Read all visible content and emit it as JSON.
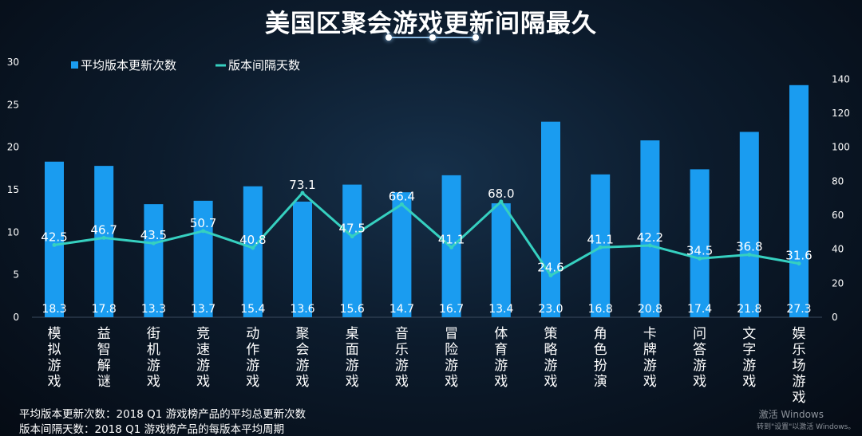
{
  "title": "美国区聚会游戏更新间隔最久",
  "chart_data": {
    "type": "bar+line",
    "categories": [
      "模拟游戏",
      "益智解谜",
      "街机游戏",
      "竞速游戏",
      "动作游戏",
      "聚会游戏",
      "桌面游戏",
      "音乐游戏",
      "冒险游戏",
      "体育游戏",
      "策略游戏",
      "角色扮演",
      "卡牌游戏",
      "问答游戏",
      "文字游戏",
      "娱乐场游戏"
    ],
    "series": [
      {
        "name": "平均版本更新次数",
        "type": "bar",
        "axis": "left",
        "color": "#1a9cf0",
        "values": [
          18.3,
          17.8,
          13.3,
          13.7,
          15.4,
          13.6,
          15.6,
          14.7,
          16.7,
          13.4,
          23.0,
          16.8,
          20.8,
          17.4,
          21.8,
          27.3
        ]
      },
      {
        "name": "版本间隔天数",
        "type": "line",
        "axis": "right",
        "color": "#36d0c0",
        "values": [
          42.5,
          46.7,
          43.5,
          50.7,
          40.8,
          73.1,
          47.5,
          66.4,
          41.1,
          68.0,
          24.6,
          41.1,
          42.2,
          34.5,
          36.8,
          31.6
        ]
      }
    ],
    "left_axis": {
      "min": 0,
      "max": 30,
      "ticks": [
        "0",
        "5",
        "10",
        "15",
        "20",
        "25",
        "30"
      ]
    },
    "right_axis": {
      "min": 0,
      "max": 150,
      "ticks": [
        "0",
        "20",
        "40",
        "60",
        "80",
        "100",
        "120",
        "140"
      ]
    },
    "legend": {
      "placement": "top-left"
    }
  },
  "footnotes": {
    "line1": "平均版本更新次数：2018 Q1 游戏榜产品的平均总更新次数",
    "line2": "版本间隔天数：2018 Q1 游戏榜产品的每版本平均周期"
  },
  "watermark": {
    "line1": "激活 Windows",
    "line2": "转到\"设置\"以激活 Windows。"
  }
}
